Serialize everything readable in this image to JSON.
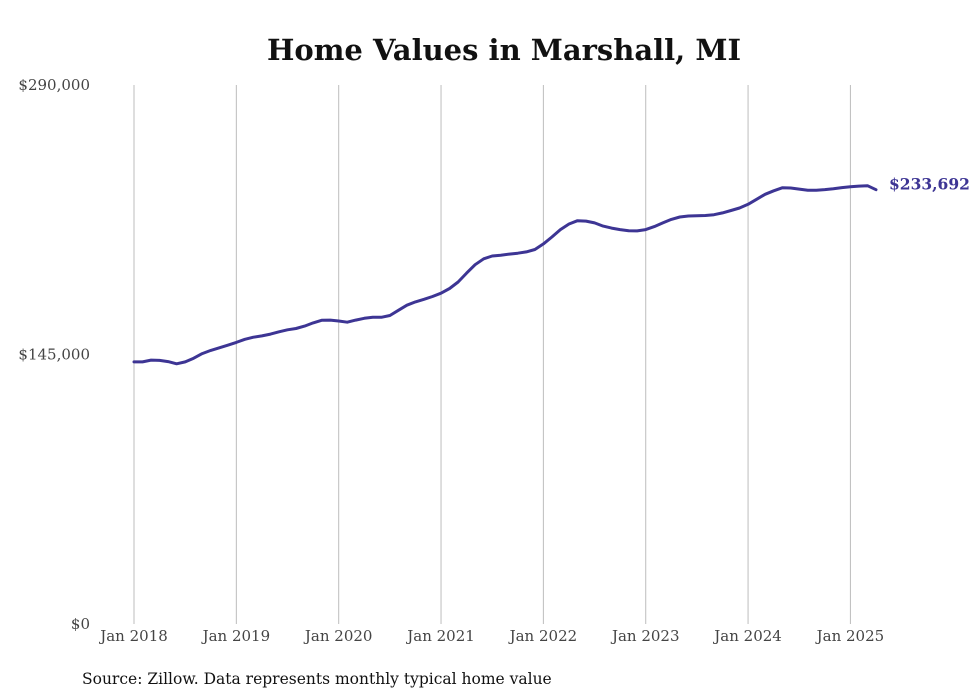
{
  "chart_data": {
    "type": "line",
    "title": "Home Values in Marshall, MI",
    "source": "Source: Zillow. Data represents monthly typical home value",
    "xlabel": "",
    "ylabel": "",
    "ylim": [
      0,
      290000
    ],
    "y_ticks": [
      0,
      145000,
      290000
    ],
    "y_tick_labels": [
      "$0",
      "$145,000",
      "$290,000"
    ],
    "x_range": [
      "2018-01",
      "2025-04"
    ],
    "x_ticks": [
      "2018-01",
      "2019-01",
      "2020-01",
      "2021-01",
      "2022-01",
      "2023-01",
      "2024-01",
      "2025-01"
    ],
    "x_tick_labels": [
      "Jan 2018",
      "Jan 2019",
      "Jan 2020",
      "Jan 2021",
      "Jan 2022",
      "Jan 2023",
      "Jan 2024",
      "Jan 2025"
    ],
    "grid": "vertical",
    "line_color": "#3d3594",
    "end_label": "$233,692",
    "series": [
      {
        "x": [
          "2018-01",
          "2018-02",
          "2018-03",
          "2018-04",
          "2018-05",
          "2018-06",
          "2018-07",
          "2018-08",
          "2018-09",
          "2018-10",
          "2018-11",
          "2018-12",
          "2019-01",
          "2019-02",
          "2019-03",
          "2019-04",
          "2019-05",
          "2019-06",
          "2019-07",
          "2019-08",
          "2019-09",
          "2019-10",
          "2019-11",
          "2019-12",
          "2020-01",
          "2020-02",
          "2020-03",
          "2020-04",
          "2020-05",
          "2020-06",
          "2020-07",
          "2020-08",
          "2020-09",
          "2020-10",
          "2020-11",
          "2020-12",
          "2021-01",
          "2021-02",
          "2021-03",
          "2021-04",
          "2021-05",
          "2021-06",
          "2021-07",
          "2021-08",
          "2021-09",
          "2021-10",
          "2021-11",
          "2021-12",
          "2022-01",
          "2022-02",
          "2022-03",
          "2022-04",
          "2022-05",
          "2022-06",
          "2022-07",
          "2022-08",
          "2022-09",
          "2022-10",
          "2022-11",
          "2022-12",
          "2023-01",
          "2023-02",
          "2023-03",
          "2023-04",
          "2023-05",
          "2023-06",
          "2023-07",
          "2023-08",
          "2023-09",
          "2023-10",
          "2023-11",
          "2023-12",
          "2024-01",
          "2024-02",
          "2024-03",
          "2024-04",
          "2024-05",
          "2024-06",
          "2024-07",
          "2024-08",
          "2024-09",
          "2024-10",
          "2024-11",
          "2024-12",
          "2025-01",
          "2025-02",
          "2025-03",
          "2025-04"
        ],
        "values": [
          141000,
          141000,
          142000,
          141800,
          141200,
          140000,
          141000,
          143000,
          145500,
          147200,
          148600,
          150000,
          151500,
          153200,
          154300,
          155000,
          156000,
          157200,
          158300,
          159000,
          160300,
          162000,
          163400,
          163500,
          163000,
          162400,
          163500,
          164500,
          165000,
          165000,
          166000,
          168800,
          171500,
          173300,
          174700,
          176200,
          178000,
          180500,
          184000,
          188800,
          193300,
          196500,
          198000,
          198400,
          199000,
          199500,
          200200,
          201500,
          204500,
          208200,
          212200,
          215200,
          217000,
          216800,
          215800,
          214100,
          213000,
          212200,
          211600,
          211500,
          212200,
          213800,
          215800,
          217700,
          219000,
          219500,
          219700,
          219800,
          220200,
          221200,
          222500,
          223800,
          225800,
          228500,
          231200,
          233100,
          234700,
          234600,
          234000,
          233400,
          233400,
          233700,
          234200,
          234800,
          235300,
          235600,
          235800,
          233692
        ]
      }
    ]
  }
}
